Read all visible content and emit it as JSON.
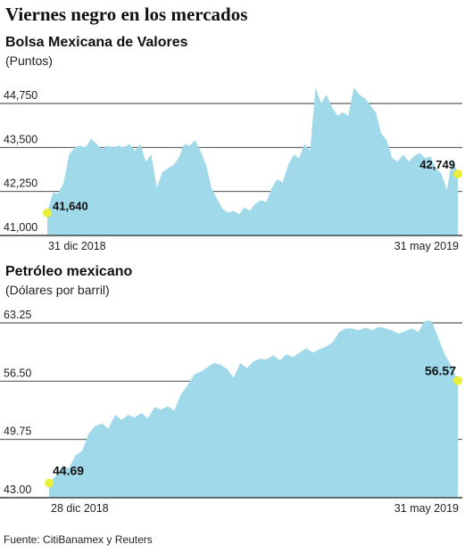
{
  "title": "Viernes negro en los mercados",
  "source": "Fuente: CitiBanamex y Reuters",
  "colors": {
    "area": "#9fd9ea",
    "marker": "#e9ef3a",
    "grid": "#333333"
  },
  "chart_data": [
    {
      "type": "area",
      "title": "Bolsa Mexicana de Valores",
      "subtitle": "(Puntos)",
      "ylim": [
        41000,
        44750
      ],
      "yticks": [
        41000,
        42250,
        43500,
        44750
      ],
      "ytick_labels": [
        "41,000",
        "42,250",
        "43,500",
        "44,750"
      ],
      "x_start_label": "31 dic 2018",
      "x_end_label": "31 may 2019",
      "start_value_label": "41,640",
      "end_value_label": "42,749",
      "values": [
        41640,
        42200,
        42200,
        42500,
        43300,
        43500,
        43550,
        43500,
        43750,
        43600,
        43450,
        43550,
        43500,
        43550,
        43500,
        43600,
        43400,
        43600,
        43100,
        43300,
        42350,
        42800,
        42900,
        43000,
        43200,
        43600,
        43550,
        43700,
        43400,
        43000,
        42350,
        42050,
        41750,
        41650,
        41700,
        41600,
        41800,
        41700,
        41900,
        42000,
        41950,
        42350,
        42600,
        42500,
        43000,
        43300,
        43200,
        43600,
        43400,
        45200,
        44750,
        45000,
        44650,
        44400,
        44500,
        44400,
        45200,
        45000,
        44900,
        44700,
        44500,
        43900,
        43700,
        43200,
        43100,
        43300,
        43100,
        43250,
        43350,
        43200,
        43250,
        42900,
        42750,
        42300,
        43200,
        42749
      ]
    },
    {
      "type": "area",
      "title": "Petróleo mexicano",
      "subtitle": "(Dólares por barril)",
      "ylim": [
        43.0,
        63.25
      ],
      "yticks": [
        43.0,
        49.75,
        56.5,
        63.25
      ],
      "ytick_labels": [
        "43.00",
        "49.75",
        "56.50",
        "63.25"
      ],
      "x_start_label": "28 dic 2018",
      "x_end_label": "31 may 2019",
      "start_value_label": "44.69",
      "end_value_label": "56.57",
      "values": [
        44.69,
        45.5,
        46.7,
        46.4,
        47.9,
        48.4,
        50.4,
        51.3,
        51.6,
        51.0,
        52.6,
        52.0,
        52.6,
        52.3,
        52.8,
        52.2,
        53.5,
        53.2,
        53.6,
        53.1,
        55.0,
        56.0,
        57.3,
        57.6,
        58.1,
        58.6,
        58.4,
        57.9,
        56.9,
        58.6,
        58.0,
        58.8,
        59.1,
        59.0,
        59.5,
        58.9,
        59.6,
        59.3,
        59.8,
        60.3,
        59.8,
        60.2,
        60.5,
        61.0,
        62.2,
        62.6,
        62.6,
        62.4,
        62.7,
        62.4,
        62.8,
        62.6,
        62.4,
        62.0,
        62.3,
        62.6,
        62.2,
        63.5,
        63.5,
        61.6,
        59.6,
        58.3,
        56.57
      ]
    }
  ]
}
